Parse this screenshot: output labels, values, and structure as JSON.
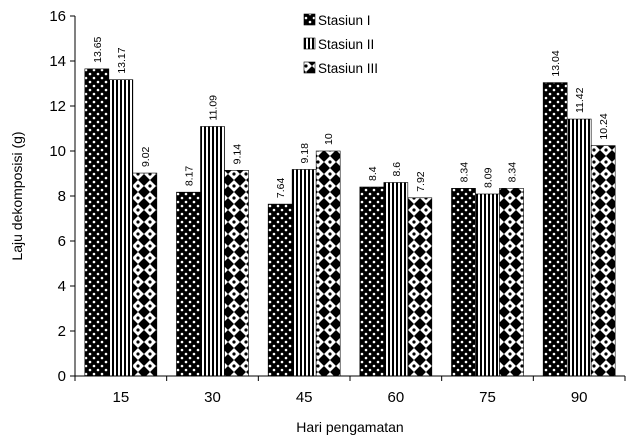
{
  "chart_data": {
    "type": "bar",
    "categories": [
      "15",
      "30",
      "45",
      "60",
      "75",
      "90"
    ],
    "series": [
      {
        "name": "Stasiun I",
        "pattern": "dots",
        "values": [
          13.65,
          8.17,
          7.64,
          8.4,
          8.34,
          13.04
        ],
        "labels": [
          "13.65",
          "8.17",
          "7.64",
          "8.4",
          "8.34",
          "13.04"
        ]
      },
      {
        "name": "Stasiun II",
        "pattern": "vertical-stripes",
        "values": [
          13.17,
          11.09,
          9.18,
          8.6,
          8.09,
          11.42
        ],
        "labels": [
          "13.17",
          "11.09",
          "9.18",
          "8.6",
          "8.09",
          "11.42"
        ]
      },
      {
        "name": "Stasiun III",
        "pattern": "diamonds",
        "values": [
          9.02,
          9.14,
          10,
          7.92,
          8.34,
          10.24
        ],
        "labels": [
          "9.02",
          "9.14",
          "10",
          "7.92",
          "8.34",
          "10.24"
        ]
      }
    ],
    "xlabel": "Hari pengamatan",
    "ylabel": "Laju dekomposisi (g)",
    "ylim": [
      0,
      16
    ],
    "yticks": [
      0,
      2,
      4,
      6,
      8,
      10,
      12,
      14,
      16
    ],
    "grid": false,
    "legend": "top-center",
    "colors": {
      "fill": "#000000",
      "pattern": "#ffffff"
    }
  }
}
